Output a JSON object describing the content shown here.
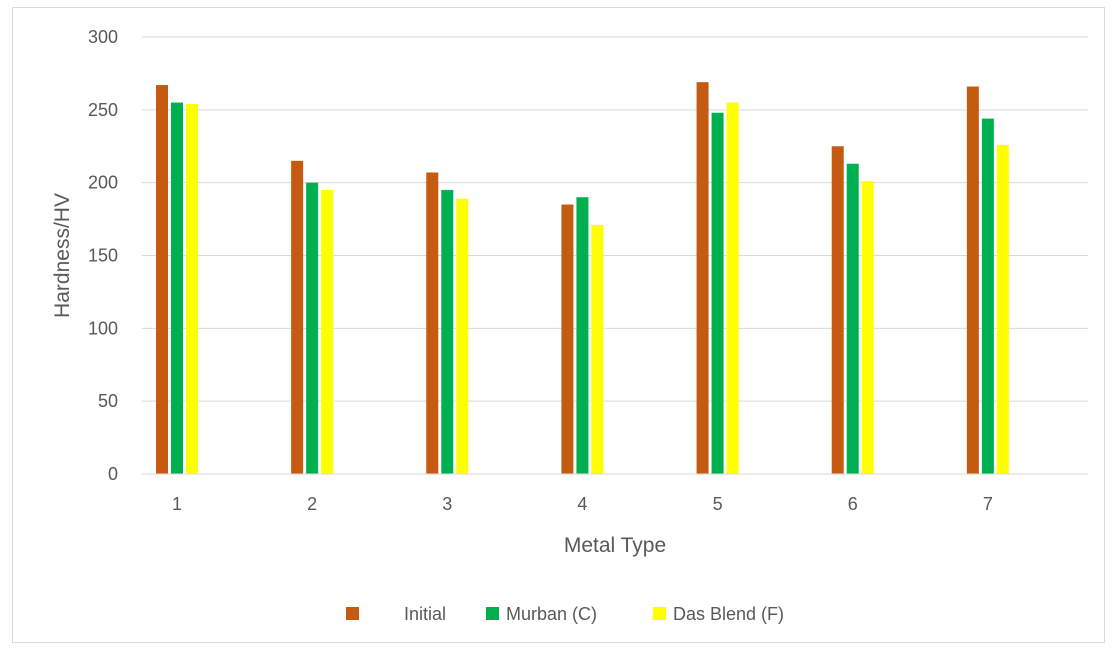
{
  "chart_data": {
    "type": "bar",
    "xlabel": "Metal Type",
    "ylabel": "Hardness/HV",
    "ylim": [
      0,
      300
    ],
    "yticks": [
      0,
      50,
      100,
      150,
      200,
      250,
      300
    ],
    "categories": [
      "1",
      "2",
      "3",
      "4",
      "5",
      "6",
      "7"
    ],
    "series": [
      {
        "name": "Initial",
        "color": "#c55a11",
        "values": [
          267,
          215,
          207,
          185,
          269,
          225,
          266
        ]
      },
      {
        "name": "Murban (C)",
        "color": "#00b050",
        "values": [
          255,
          200,
          195,
          190,
          248,
          213,
          244
        ]
      },
      {
        "name": "Das Blend (F)",
        "color": "#ffff00",
        "values": [
          254,
          195,
          189,
          171,
          255,
          201,
          226
        ]
      }
    ],
    "grid": true,
    "legend_position": "bottom"
  }
}
